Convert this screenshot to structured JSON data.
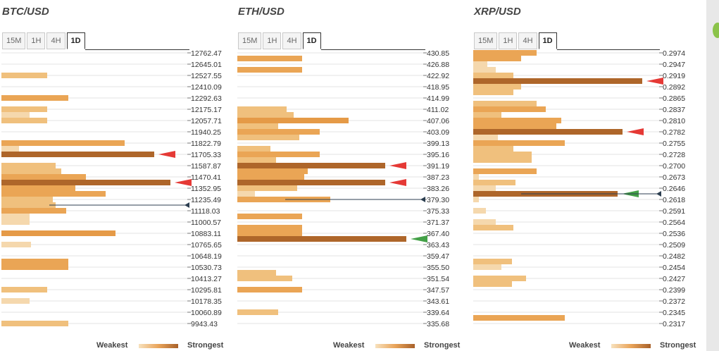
{
  "tabs": [
    "15M",
    "1H",
    "4H",
    "1D"
  ],
  "active_tab": "1D",
  "legend": {
    "weakest": "Weakest",
    "strongest": "Strongest"
  },
  "colors": {
    "level_0": "#f5d8ad",
    "level_1": "#f0c07d",
    "level_2": "#eaa555",
    "level_3": "#e59a47",
    "level_4": "#ae662a",
    "marker_red": "#e53935",
    "marker_green": "#43a047",
    "price_line": "#2c3e50",
    "grid": "#e3e3e3"
  },
  "chart_data": [
    {
      "type": "bar",
      "title": "BTC/USD",
      "labels": [
        "12762.47",
        "12645.01",
        "12527.55",
        "12410.09",
        "12292.63",
        "12175.17",
        "12057.71",
        "11940.25",
        "11822.79",
        "11705.33",
        "11587.87",
        "11470.41",
        "11352.95",
        "11235.49",
        "11118.03",
        "11000.57",
        "10883.11",
        "10765.65",
        "10648.19",
        "10530.73",
        "10413.27",
        "10295.81",
        "10178.35",
        "10060.89",
        "9943.43"
      ],
      "bars": [
        {
          "row": 0,
          "value": 0
        },
        {
          "row": 2,
          "value": 65,
          "level": 1
        },
        {
          "row": 4,
          "value": 95,
          "level": 2
        },
        {
          "row": 5,
          "value": 65,
          "level": 1
        },
        {
          "row": 5.5,
          "value": 40,
          "level": 0
        },
        {
          "row": 6,
          "value": 65,
          "level": 1
        },
        {
          "row": 8,
          "value": 175,
          "level": 2
        },
        {
          "row": 8.5,
          "value": 25,
          "level": 0
        },
        {
          "row": 9,
          "value": 217,
          "level": 4,
          "marker": "red"
        },
        {
          "row": 10,
          "value": 77,
          "level": 1
        },
        {
          "row": 10.5,
          "value": 85,
          "level": 1
        },
        {
          "row": 11,
          "value": 120,
          "level": 2
        },
        {
          "row": 11.5,
          "value": 240,
          "level": 4,
          "marker": "red"
        },
        {
          "row": 12,
          "value": 105,
          "level": 2
        },
        {
          "row": 12.5,
          "value": 148,
          "level": 2
        },
        {
          "row": 13,
          "value": 73,
          "level": 1
        },
        {
          "row": 13.5,
          "value": 77,
          "level": 1
        },
        {
          "row": 14,
          "value": 92,
          "level": 2
        },
        {
          "row": 14.5,
          "value": 40,
          "level": 0
        },
        {
          "row": 15,
          "value": 40,
          "level": 0
        },
        {
          "row": 16,
          "value": 162,
          "level": 3
        },
        {
          "row": 17,
          "value": 42,
          "level": 0
        },
        {
          "row": 18.5,
          "value": 95,
          "level": 2
        },
        {
          "row": 19,
          "value": 95,
          "level": 2
        },
        {
          "row": 21,
          "value": 65,
          "level": 1
        },
        {
          "row": 22,
          "value": 40,
          "level": 0
        },
        {
          "row": 24,
          "value": 95,
          "level": 1
        }
      ],
      "current_price_row": 13.5
    },
    {
      "type": "bar",
      "title": "ETH/USD",
      "labels": [
        "430.85",
        "426.88",
        "422.92",
        "418.95",
        "414.99",
        "411.02",
        "407.06",
        "403.09",
        "399.13",
        "395.16",
        "391.19",
        "387.23",
        "383.26",
        "379.30",
        "375.33",
        "371.37",
        "367.40",
        "363.43",
        "359.47",
        "355.50",
        "351.54",
        "347.57",
        "343.61",
        "339.64",
        "335.68"
      ],
      "bars": [
        {
          "row": 0.5,
          "value": 92,
          "level": 2
        },
        {
          "row": 1.5,
          "value": 92,
          "level": 2
        },
        {
          "row": 5,
          "value": 70,
          "level": 1
        },
        {
          "row": 5.5,
          "value": 80,
          "level": 1
        },
        {
          "row": 6,
          "value": 158,
          "level": 3
        },
        {
          "row": 6.5,
          "value": 58,
          "level": 1
        },
        {
          "row": 7,
          "value": 117,
          "level": 2
        },
        {
          "row": 7.5,
          "value": 88,
          "level": 1
        },
        {
          "row": 8.5,
          "value": 47,
          "level": 1
        },
        {
          "row": 9,
          "value": 117,
          "level": 2
        },
        {
          "row": 9.5,
          "value": 55,
          "level": 1
        },
        {
          "row": 10,
          "value": 210,
          "level": 4,
          "marker": "red"
        },
        {
          "row": 10.5,
          "value": 100,
          "level": 2
        },
        {
          "row": 11,
          "value": 95,
          "level": 2
        },
        {
          "row": 11.5,
          "value": 210,
          "level": 4,
          "marker": "red"
        },
        {
          "row": 12,
          "value": 85,
          "level": 1
        },
        {
          "row": 12.5,
          "value": 25,
          "level": 0
        },
        {
          "row": 13,
          "value": 132,
          "level": 2
        },
        {
          "row": 14.5,
          "value": 92,
          "level": 2
        },
        {
          "row": 15.5,
          "value": 92,
          "level": 2
        },
        {
          "row": 16,
          "value": 92,
          "level": 2
        },
        {
          "row": 16.5,
          "value": 240,
          "level": 4,
          "marker": "green"
        },
        {
          "row": 19.5,
          "value": 55,
          "level": 1
        },
        {
          "row": 20,
          "value": 78,
          "level": 1
        },
        {
          "row": 21,
          "value": 92,
          "level": 2
        },
        {
          "row": 23,
          "value": 58,
          "level": 1
        }
      ],
      "current_price_row": 13
    },
    {
      "type": "bar",
      "title": "XRP/USD",
      "labels": [
        "0.2974",
        "0.2947",
        "0.2919",
        "0.2892",
        "0.2865",
        "0.2837",
        "0.2810",
        "0.2782",
        "0.2755",
        "0.2728",
        "0.2700",
        "0.2673",
        "0.2646",
        "0.2618",
        "0.2591",
        "0.2564",
        "0.2536",
        "0.2509",
        "0.2482",
        "0.2454",
        "0.2427",
        "0.2399",
        "0.2372",
        "0.2345",
        "0.2317"
      ],
      "bars": [
        {
          "row": 0,
          "value": 90,
          "level": 2
        },
        {
          "row": 0.5,
          "value": 68,
          "level": 2
        },
        {
          "row": 1,
          "value": 20,
          "level": 0
        },
        {
          "row": 1.5,
          "value": 32,
          "level": 0
        },
        {
          "row": 2,
          "value": 57,
          "level": 1
        },
        {
          "row": 2.5,
          "value": 240,
          "level": 4,
          "marker": "red"
        },
        {
          "row": 3,
          "value": 68,
          "level": 1
        },
        {
          "row": 3.5,
          "value": 57,
          "level": 1
        },
        {
          "row": 4.5,
          "value": 90,
          "level": 1
        },
        {
          "row": 5,
          "value": 103,
          "level": 2
        },
        {
          "row": 5.5,
          "value": 40,
          "level": 1
        },
        {
          "row": 6,
          "value": 125,
          "level": 2
        },
        {
          "row": 6.5,
          "value": 118,
          "level": 2
        },
        {
          "row": 7,
          "value": 212,
          "level": 4,
          "marker": "red"
        },
        {
          "row": 7.5,
          "value": 35,
          "level": 0
        },
        {
          "row": 8,
          "value": 130,
          "level": 2
        },
        {
          "row": 8.5,
          "value": 57,
          "level": 1
        },
        {
          "row": 9,
          "value": 83,
          "level": 1
        },
        {
          "row": 9.5,
          "value": 83,
          "level": 1
        },
        {
          "row": 10.5,
          "value": 90,
          "level": 2
        },
        {
          "row": 11,
          "value": 8,
          "level": 0
        },
        {
          "row": 11.5,
          "value": 60,
          "level": 1
        },
        {
          "row": 12,
          "value": 32,
          "level": 0
        },
        {
          "row": 12.5,
          "value": 205,
          "level": 4,
          "marker": "green"
        },
        {
          "row": 13,
          "value": 8,
          "level": 0
        },
        {
          "row": 14,
          "value": 18,
          "level": 0
        },
        {
          "row": 15,
          "value": 32,
          "level": 0
        },
        {
          "row": 15.5,
          "value": 57,
          "level": 1
        },
        {
          "row": 18.5,
          "value": 55,
          "level": 1
        },
        {
          "row": 19,
          "value": 40,
          "level": 0
        },
        {
          "row": 20,
          "value": 75,
          "level": 1
        },
        {
          "row": 20.5,
          "value": 55,
          "level": 1
        },
        {
          "row": 23.5,
          "value": 130,
          "level": 2
        }
      ],
      "current_price_row": 12.5
    }
  ]
}
